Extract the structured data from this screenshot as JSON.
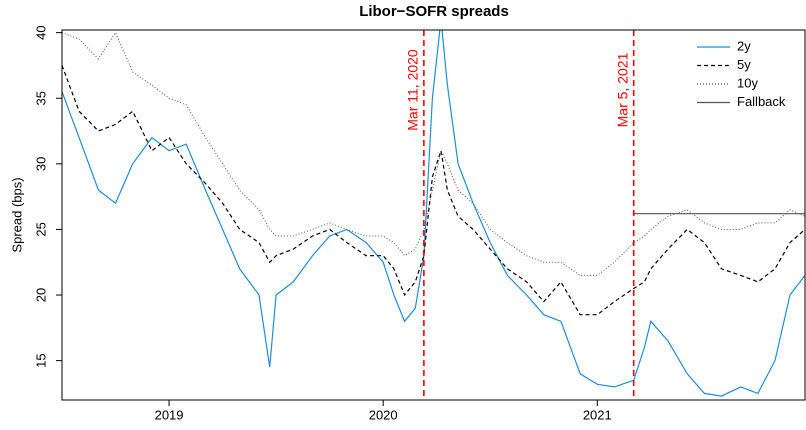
{
  "chart_data": {
    "type": "line",
    "title": "Libor−SOFR spreads",
    "y_label": "Spread (bps)",
    "x": [
      2018.5,
      2018.58,
      2018.67,
      2018.75,
      2018.83,
      2018.92,
      2019.0,
      2019.08,
      2019.17,
      2019.25,
      2019.33,
      2019.42,
      2019.47,
      2019.5,
      2019.58,
      2019.67,
      2019.75,
      2019.83,
      2019.92,
      2020.0,
      2020.05,
      2020.1,
      2020.15,
      2020.19,
      2020.23,
      2020.27,
      2020.3,
      2020.35,
      2020.42,
      2020.5,
      2020.58,
      2020.67,
      2020.75,
      2020.83,
      2020.92,
      2021.0,
      2021.08,
      2021.17,
      2021.22,
      2021.25,
      2021.33,
      2021.42,
      2021.5,
      2021.58,
      2021.67,
      2021.75,
      2021.83,
      2021.9,
      2021.97
    ],
    "series": [
      {
        "name": "2y",
        "color": "#1f8fd4",
        "dash": "solid",
        "values": [
          35.5,
          32,
          28,
          27,
          30,
          32,
          31,
          31.5,
          28,
          25,
          22,
          20,
          14.5,
          20,
          21,
          23,
          24.5,
          25,
          24,
          22.5,
          20,
          18,
          19,
          23,
          35,
          41,
          36,
          30,
          27,
          24,
          21.5,
          20,
          18.5,
          18,
          14,
          13.2,
          13,
          13.5,
          16,
          18,
          16.5,
          14,
          12.5,
          12.3,
          13,
          12.5,
          15,
          20,
          21.5
        ]
      },
      {
        "name": "5y",
        "color": "#000000",
        "dash": "dashed",
        "values": [
          37.5,
          34,
          32.5,
          33,
          34,
          31,
          32,
          30,
          28.5,
          27,
          25,
          24,
          22.5,
          23,
          23.5,
          24.5,
          25,
          24,
          23,
          23,
          22,
          20,
          21,
          23,
          29,
          31,
          28,
          26,
          25,
          23.5,
          22,
          21,
          19.5,
          21,
          18.5,
          18.5,
          19.5,
          20.5,
          21,
          22,
          23.5,
          25,
          24,
          22,
          21.5,
          21,
          22,
          24,
          25
        ]
      },
      {
        "name": "10y",
        "color": "#555555",
        "dash": "dotted",
        "values": [
          40,
          39.5,
          38,
          40,
          37,
          36,
          35,
          34.5,
          32,
          30,
          28,
          26.5,
          25,
          24.5,
          24.5,
          25,
          25.5,
          25,
          24.5,
          24.5,
          24,
          23,
          23.5,
          25,
          28,
          31,
          30,
          28,
          27,
          25,
          24,
          23,
          22.5,
          22.5,
          21.5,
          21.5,
          22.5,
          24,
          24.5,
          25,
          26,
          26.5,
          25.5,
          25,
          25,
          25.5,
          25.5,
          26.5,
          26
        ]
      },
      {
        "name": "Fallback",
        "color": "#555555",
        "dash": "solid",
        "x": [
          2021.17,
          2021.97
        ],
        "values": [
          26.2,
          26.2
        ]
      }
    ],
    "annotations": [
      {
        "x": 2020.19,
        "label": "Mar 11, 2020",
        "color": "#ff0000"
      },
      {
        "x": 2021.17,
        "label": "Mar 5, 2021",
        "color": "#ff0000"
      }
    ],
    "xlim": [
      2018.5,
      2021.97
    ],
    "xticks": [
      2019,
      2020,
      2021
    ],
    "ylim": [
      12,
      40.2
    ],
    "yticks": [
      15,
      20,
      25,
      30,
      35,
      40
    ],
    "legend": "top-right"
  }
}
